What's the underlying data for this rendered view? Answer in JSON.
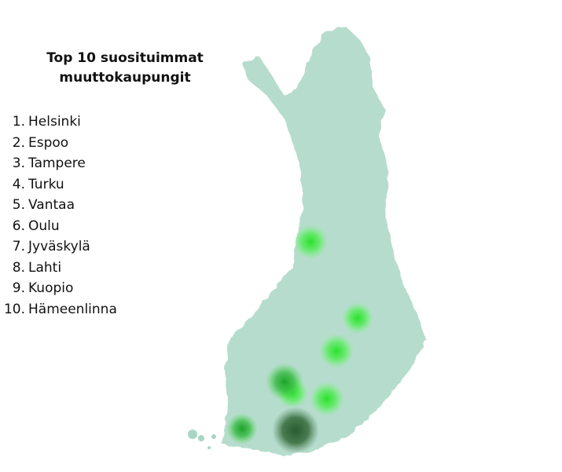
{
  "title": "Top 10 suosituimmat muuttokaupungit",
  "title_lines": [
    "Top 10 suosituimmat",
    "muuttokaupungit"
  ],
  "cities": [
    {
      "rank": "1.",
      "name": "Helsinki"
    },
    {
      "rank": "2.",
      "name": "Espoo"
    },
    {
      "rank": "3.",
      "name": "Tampere"
    },
    {
      "rank": "4.",
      "name": "Turku"
    },
    {
      "rank": "5.",
      "name": "Vantaa"
    },
    {
      "rank": "6.",
      "name": "Oulu"
    },
    {
      "rank": "7.",
      "name": "Jyväskylä"
    },
    {
      "rank": "8.",
      "name": "Lahti"
    },
    {
      "rank": "9.",
      "name": "Kuopio"
    },
    {
      "rank": "10.",
      "name": "Hämeenlinna"
    }
  ],
  "colors": {
    "land": "#a9d6c4",
    "hotspot_light": "#33e633",
    "hotspot_mid": "#1fa82a",
    "hotspot_dark": "#2f5e35"
  }
}
